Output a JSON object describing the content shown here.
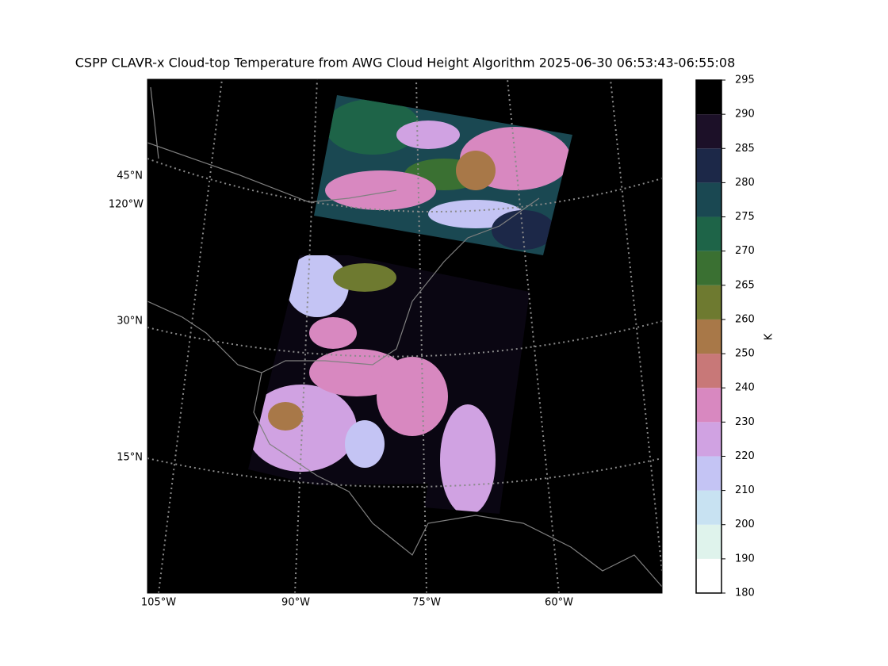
{
  "title": "CSPP CLAVR-x Cloud-top Temperature from AWG Cloud Height Algorithm 2025-06-30 06:53:43-06:55:08",
  "map": {
    "lat_labels": [
      "45°N",
      "30°N",
      "15°N"
    ],
    "lon_label_left": "120°W",
    "lon_labels_bottom": [
      "105°W",
      "90°W",
      "75°W",
      "60°W"
    ]
  },
  "colorbar": {
    "label": "K",
    "ticks": [
      180,
      190,
      200,
      210,
      220,
      230,
      240,
      250,
      260,
      265,
      270,
      275,
      280,
      285,
      290,
      295
    ],
    "colors": [
      "#ffffff",
      "#dff3ec",
      "#c8e2f2",
      "#c4c4f4",
      "#d0a2e2",
      "#d888c0",
      "#c87878",
      "#a87848",
      "#6e7a30",
      "#3a7032",
      "#1e6448",
      "#1a4852",
      "#1c2848",
      "#1c1028",
      "#000000"
    ]
  }
}
